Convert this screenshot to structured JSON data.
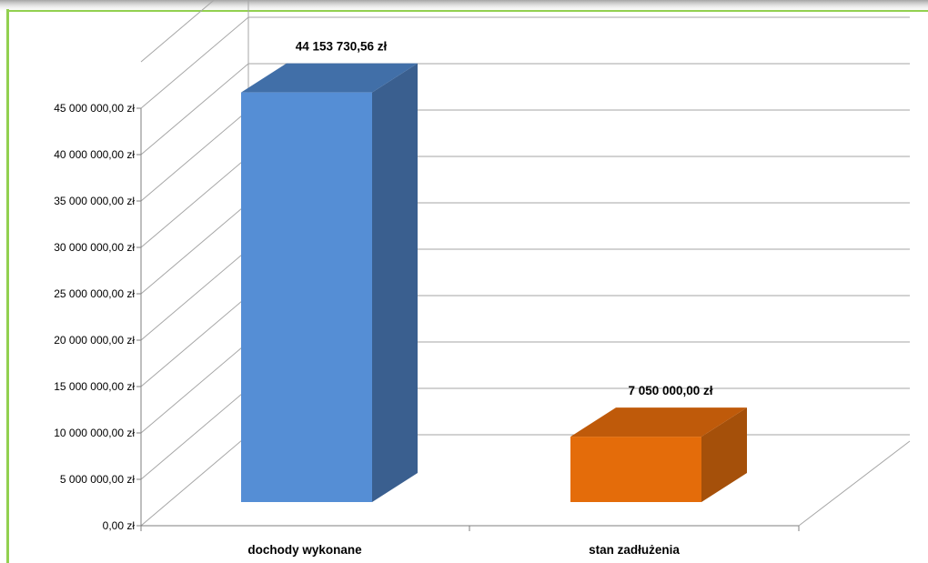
{
  "chart_data": {
    "type": "bar",
    "style": "3d-column",
    "title": "",
    "xlabel": "",
    "ylabel": "",
    "categories": [
      "dochody wykonane",
      "stan zadłużenia"
    ],
    "values": [
      44153730.56,
      7050000.0
    ],
    "data_labels": [
      "44 153 730,56 zł",
      "7 050 000,00 zł"
    ],
    "colors": [
      "#558ED5",
      "#E46C0A"
    ],
    "y_ticks": [
      0,
      5000000,
      10000000,
      15000000,
      20000000,
      25000000,
      30000000,
      35000000,
      40000000,
      45000000
    ],
    "y_tick_labels": [
      "0,00 zł",
      "5 000 000,00 zł",
      "10 000 000,00 zł",
      "15 000 000,00 zł",
      "20 000 000,00 zł",
      "25 000 000,00 zł",
      "30 000 000,00 zł",
      "35 000 000,00 zł",
      "40 000 000,00 zł",
      "45 000 000,00 zł"
    ],
    "ylim": [
      0,
      45000000
    ],
    "grid": true,
    "legend": "none"
  },
  "frame": {
    "border_color": "#92D050",
    "shadow_color": "#9a9a9a"
  }
}
